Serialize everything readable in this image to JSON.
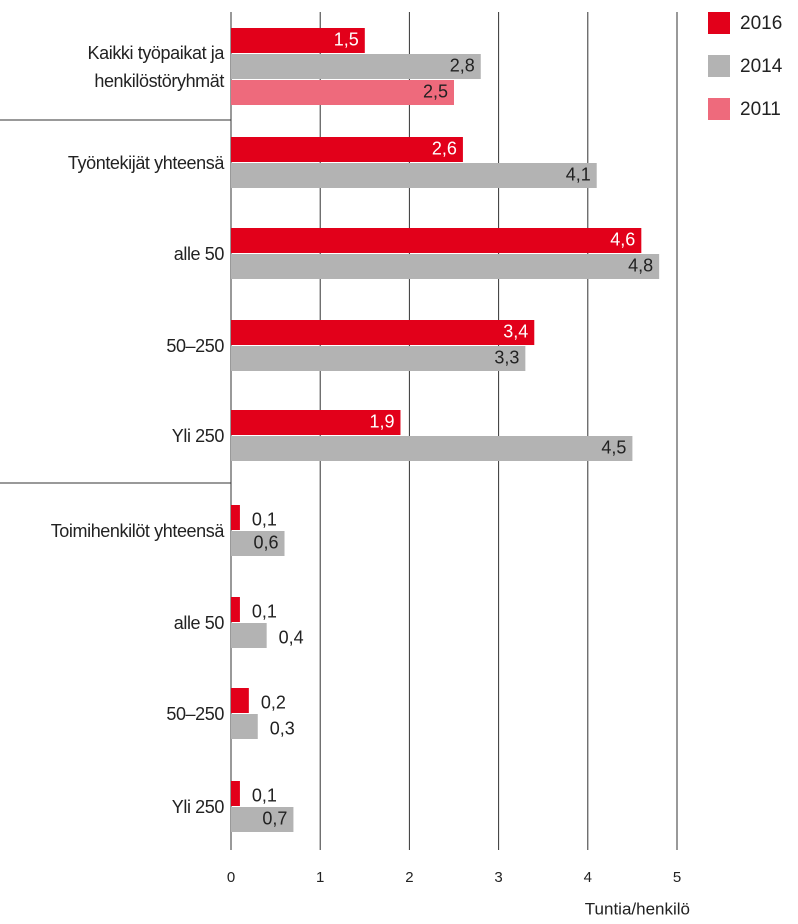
{
  "chart_data": {
    "type": "bar",
    "orientation": "horizontal",
    "categories": [
      "Kaikki työpaikat ja\nhenkilöstöryhmät",
      "Työntekijät yhteensä",
      "alle 50",
      "50–250",
      "Yli 250",
      "Toimihenkilöt yhteensä",
      "alle 50",
      "50–250",
      "Yli 250"
    ],
    "series": [
      {
        "name": "2016",
        "color": "#e2001a",
        "values": [
          1.5,
          2.6,
          4.6,
          3.4,
          1.9,
          0.1,
          0.1,
          0.2,
          0.1
        ],
        "value_labels": [
          "1,5",
          "2,6",
          "4,6",
          "3,4",
          "1,9",
          "0,1",
          "0,1",
          "0,2",
          "0,1"
        ]
      },
      {
        "name": "2014",
        "color": "#b3b3b3",
        "values": [
          2.8,
          4.1,
          4.8,
          3.3,
          4.5,
          0.6,
          0.4,
          0.3,
          0.7
        ],
        "value_labels": [
          "2,8",
          "4,1",
          "4,8",
          "3,3",
          "4,5",
          "0,6",
          "0,4",
          "0,3",
          "0,7"
        ]
      },
      {
        "name": "2011",
        "color": "#ee6a7c",
        "values": [
          2.5,
          null,
          null,
          null,
          null,
          null,
          null,
          null,
          null
        ],
        "value_labels": [
          "2,5",
          null,
          null,
          null,
          null,
          null,
          null,
          null,
          null
        ]
      }
    ],
    "xlim": [
      0,
      5
    ],
    "xticks": [
      0,
      1,
      2,
      3,
      4,
      5
    ],
    "xlabel": "Tuntia/henkilö",
    "grid": true,
    "legend": "top-right"
  }
}
